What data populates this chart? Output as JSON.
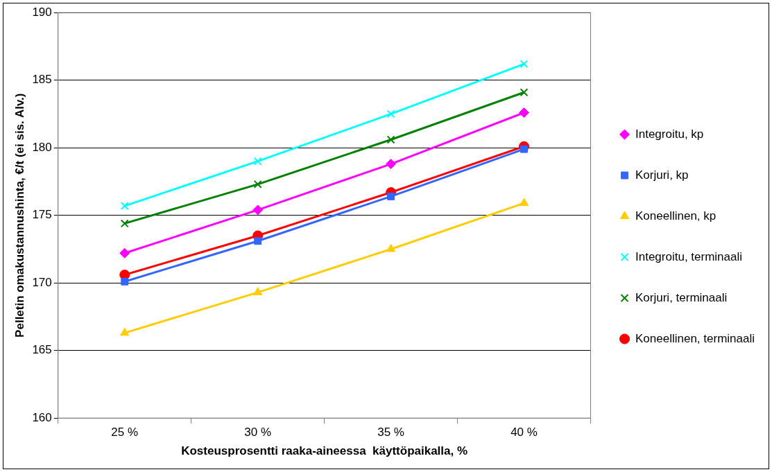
{
  "chart_data": {
    "type": "line",
    "xlabel": "Kosteusprosentti raaka-aineessa  käyttöpaikalla, %",
    "ylabel": "Pelletin omakustannushinta, €/t (ei sis. Alv.)",
    "categories": [
      "25 %",
      "30 %",
      "35 %",
      "40 %"
    ],
    "series": [
      {
        "name": "Integroitu, kp",
        "color": "#ff00ff",
        "marker": "diamond",
        "values": [
          172.2,
          175.4,
          178.8,
          182.6
        ]
      },
      {
        "name": "Korjuri, kp",
        "color": "#3366ff",
        "marker": "square",
        "values": [
          170.1,
          173.1,
          176.4,
          179.9
        ]
      },
      {
        "name": "Koneellinen, kp",
        "color": "#ffcc00",
        "marker": "triangle",
        "values": [
          166.3,
          169.3,
          172.5,
          175.9
        ]
      },
      {
        "name": "Integroitu, terminaali",
        "color": "#00ffff",
        "marker": "cross",
        "values": [
          175.7,
          179.0,
          182.5,
          186.2
        ]
      },
      {
        "name": "Korjuri, terminaali",
        "color": "#008000",
        "marker": "cross",
        "values": [
          174.4,
          177.3,
          180.6,
          184.1
        ]
      },
      {
        "name": "Koneellinen, terminaali",
        "color": "#ff0000",
        "marker": "circle",
        "values": [
          170.6,
          173.5,
          176.7,
          180.1
        ]
      }
    ],
    "ylim": [
      160,
      190
    ],
    "yticks": [
      160,
      165,
      170,
      175,
      180,
      185,
      190
    ],
    "grid": "y",
    "legend": "right",
    "line_style": "solid"
  }
}
